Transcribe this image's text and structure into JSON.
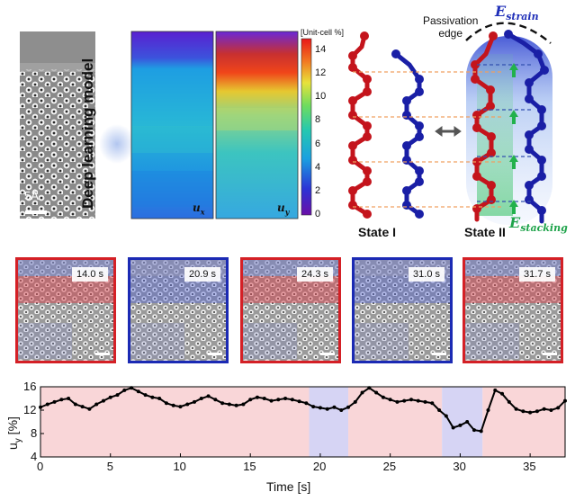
{
  "top_panel": {
    "scale_bar_label": "5Å",
    "model_label": "Deep learning model",
    "map_ux_label": "u",
    "map_ux_sub": "x",
    "map_uy_label": "u",
    "map_uy_sub": "y",
    "colorbar": {
      "title": "[Unit-cell %]",
      "ticks": [
        "14",
        "12",
        "10",
        "8",
        "6",
        "4",
        "2",
        "0"
      ],
      "range": [
        0,
        15
      ]
    },
    "state_i_label": "State I",
    "state_ii_label": "State II",
    "passivation_label": "Passivation\nedge",
    "e_strain_main": "E",
    "e_strain_sub": "strain",
    "e_stacking_main": "E",
    "e_stacking_sub": "stacking",
    "colors": {
      "molecule_red": "#c4141c",
      "molecule_blue": "#1a1fa6",
      "guide_orange": "#f0a060",
      "strain_text": "#1f2fb8",
      "stacking_text": "#1ea34a"
    }
  },
  "frames": [
    {
      "time": "14.0 s",
      "border": "#d42026"
    },
    {
      "time": "20.9 s",
      "border": "#1b2ab4"
    },
    {
      "time": "24.3 s",
      "border": "#d42026"
    },
    {
      "time": "31.0 s",
      "border": "#1b2ab4"
    },
    {
      "time": "31.7 s",
      "border": "#d42026"
    }
  ],
  "chart_data": {
    "type": "line",
    "title": "",
    "xlabel": "Time [s]",
    "ylabel_main": "u",
    "ylabel_sub": "y",
    "ylabel_unit": " [%]",
    "xlim": [
      0,
      37.5
    ],
    "ylim": [
      4,
      16
    ],
    "xticks": [
      0,
      5,
      10,
      15,
      20,
      25,
      30,
      35
    ],
    "yticks": [
      4,
      8,
      12,
      16
    ],
    "background_bands": [
      {
        "from": 0,
        "to": 19.2,
        "state": "I",
        "color": "#f9d6d8"
      },
      {
        "from": 19.2,
        "to": 22.0,
        "state": "II",
        "color": "#d6d4f4"
      },
      {
        "from": 22.0,
        "to": 28.7,
        "state": "I",
        "color": "#f9d6d8"
      },
      {
        "from": 28.7,
        "to": 31.6,
        "state": "II",
        "color": "#d6d4f4"
      },
      {
        "from": 31.6,
        "to": 37.5,
        "state": "I",
        "color": "#f9d6d8"
      }
    ],
    "series": [
      {
        "name": "u_y",
        "x": [
          0,
          0.5,
          1,
          1.5,
          2,
          2.5,
          3,
          3.5,
          4,
          4.5,
          5,
          5.5,
          6,
          6.5,
          7,
          7.5,
          8,
          8.5,
          9,
          9.5,
          10,
          10.5,
          11,
          11.5,
          12,
          12.5,
          13,
          13.5,
          14,
          14.5,
          15,
          15.5,
          16,
          16.5,
          17,
          17.5,
          18,
          18.5,
          19,
          19.5,
          20,
          20.5,
          21,
          21.5,
          22,
          22.5,
          23,
          23.5,
          24,
          24.5,
          25,
          25.5,
          26,
          26.5,
          27,
          27.5,
          28,
          28.5,
          29,
          29.5,
          30,
          30.5,
          31,
          31.5,
          32,
          32.5,
          33,
          33.5,
          34,
          34.5,
          35,
          35.5,
          36,
          36.5,
          37,
          37.5
        ],
        "values": [
          12.5,
          13.0,
          13.4,
          13.8,
          14.0,
          13.0,
          12.6,
          12.2,
          13.0,
          13.6,
          14.2,
          14.6,
          15.4,
          15.8,
          15.2,
          14.6,
          14.2,
          14.0,
          13.2,
          12.8,
          12.6,
          13.0,
          13.4,
          14.0,
          14.4,
          13.8,
          13.2,
          13.0,
          12.8,
          13.0,
          13.8,
          14.2,
          14.0,
          13.6,
          13.8,
          14.0,
          13.8,
          13.5,
          13.2,
          12.6,
          12.4,
          12.2,
          12.5,
          12.0,
          12.5,
          13.4,
          15.0,
          15.8,
          15.0,
          14.2,
          13.8,
          13.4,
          13.6,
          13.8,
          13.6,
          13.4,
          13.2,
          12.0,
          11.0,
          9.0,
          9.4,
          10.0,
          8.6,
          8.4,
          12.0,
          15.4,
          14.8,
          13.4,
          12.2,
          11.8,
          11.6,
          11.8,
          12.2,
          12.0,
          12.4,
          13.6
        ]
      }
    ]
  }
}
